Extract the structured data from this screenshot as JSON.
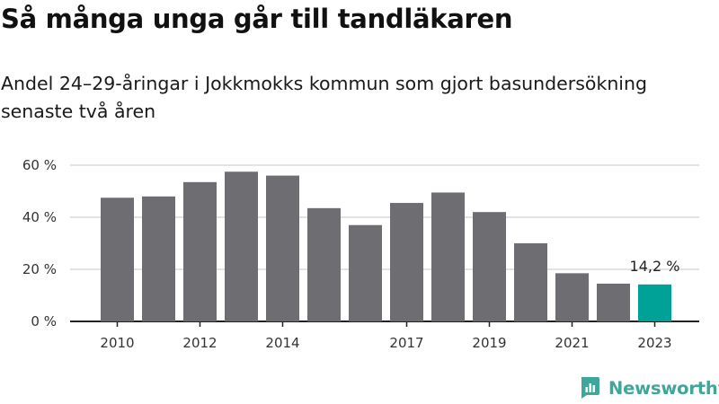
{
  "colors": {
    "bar": "#6e6d72",
    "highlight": "#00a196",
    "grid": "#dadada",
    "axis": "#222222",
    "brand": "#3fa69a"
  },
  "icons": {
    "brand_logo": "newsworthy-logo-icon"
  },
  "brand": {
    "name": "Newsworthy"
  },
  "chart_data": {
    "type": "bar",
    "title": "Så många unga går till tandläkaren",
    "subtitle": "Andel 24–29-åringar i Jokkmokks kommun som gjort basundersökning senaste två åren",
    "xlabel": "",
    "ylabel": "",
    "categories": [
      "2010",
      "2011",
      "2012",
      "2013",
      "2014",
      "2015",
      "2016",
      "2017",
      "2018",
      "2019",
      "2020",
      "2021",
      "2022",
      "2023"
    ],
    "values": [
      47.5,
      48,
      53.5,
      57.5,
      56,
      43.5,
      37,
      45.5,
      49.5,
      42,
      30,
      18.5,
      14.5,
      14.2
    ],
    "x_tick_labels": [
      "2010",
      "2012",
      "2014",
      "2017",
      "2019",
      "2021",
      "2023"
    ],
    "y_ticks": [
      0,
      20,
      40,
      60
    ],
    "y_tick_labels": [
      "0 %",
      "20 %",
      "40 %",
      "60 %"
    ],
    "ylim": [
      0,
      60
    ],
    "grid": true,
    "legend": "none",
    "highlight_index": 13,
    "data_label": "14,2 %"
  }
}
